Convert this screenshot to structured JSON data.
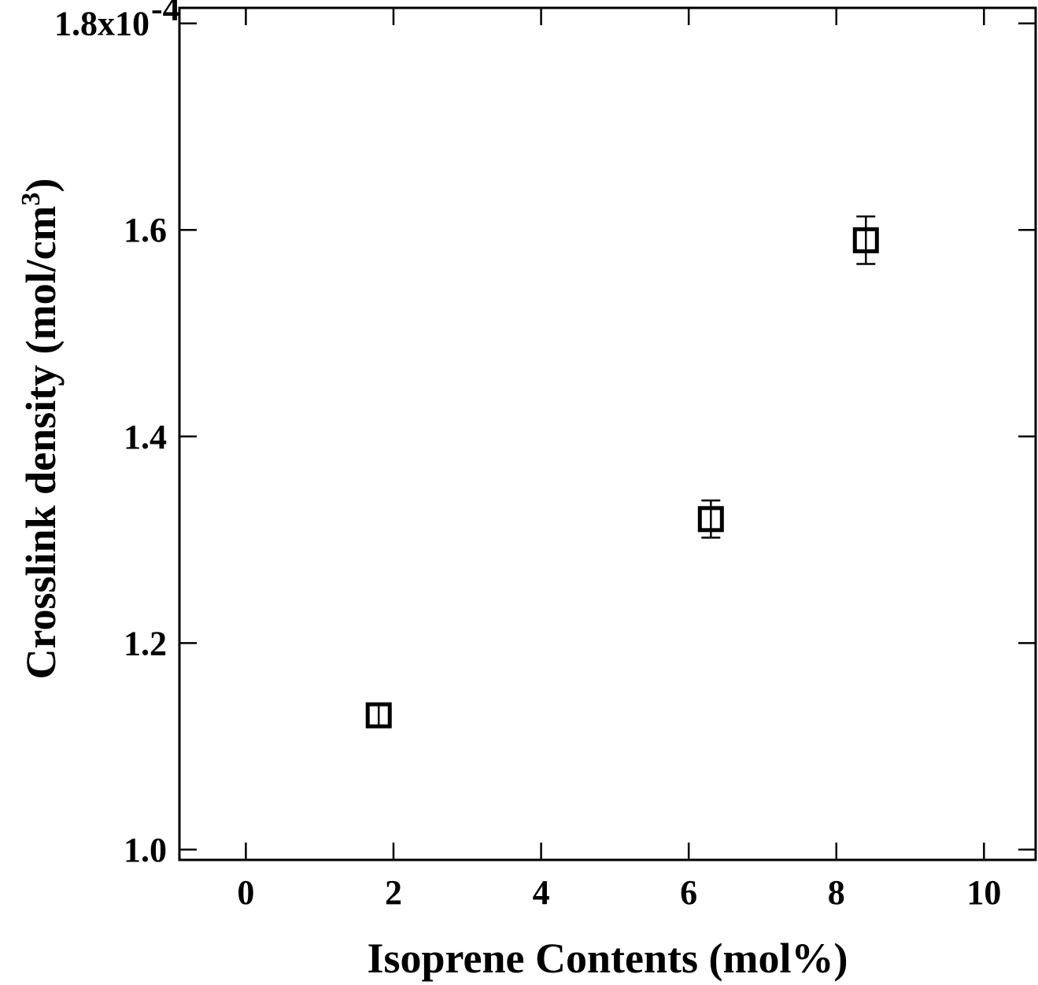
{
  "chart_data": {
    "type": "scatter",
    "xlabel": "Isoprene Contents (mol%)",
    "ylabel_main": "Crosslink density (mol/cm",
    "ylabel_sup": "3",
    "ylabel_tail": ")",
    "xlim": [
      -0.9,
      10.7
    ],
    "ylim": [
      0.99,
      1.815
    ],
    "x_ticks": [
      0,
      2,
      4,
      6,
      8,
      10
    ],
    "x_tick_labels": [
      "0",
      "2",
      "4",
      "6",
      "8",
      "10"
    ],
    "y_ticks": [
      1.0,
      1.2,
      1.4,
      1.6,
      1.8
    ],
    "y_tick_labels": [
      "1.0",
      "1.2",
      "1.4",
      "1.6",
      "1.8x10"
    ],
    "y_top_exponent": "-4",
    "y_scale_note": "values x10^-4 mol/cm3",
    "series": [
      {
        "marker": "open-square",
        "points": [
          {
            "x": 1.8,
            "y": 1.13,
            "err": 0.006
          },
          {
            "x": 6.3,
            "y": 1.32,
            "err": 0.018
          },
          {
            "x": 8.4,
            "y": 1.59,
            "err": 0.023
          }
        ]
      }
    ]
  }
}
